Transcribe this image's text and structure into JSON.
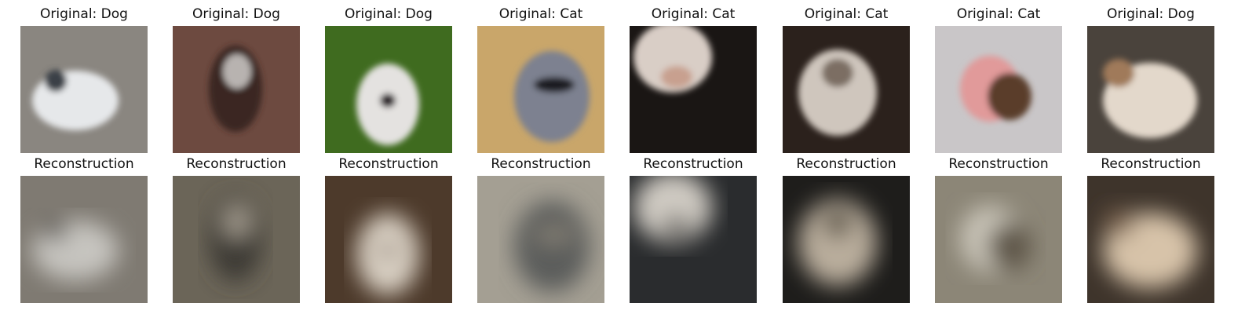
{
  "figure": {
    "columns": [
      {
        "original_title": "Original: Dog",
        "reconstruction_title": "Reconstruction",
        "original_image": "photo-white-dog-lying",
        "reconstruction_image": "blurry-reconstruction",
        "original_colors": {
          "bg": "#8a8680",
          "subject": "#e6e8ea",
          "accent": "#3b3f46"
        },
        "reconstruction_colors": {
          "bg": "#7f7a72",
          "subject": "#c6c4bf",
          "accent": "#5d5a56"
        }
      },
      {
        "original_title": "Original: Dog",
        "reconstruction_title": "Reconstruction",
        "original_image": "photo-dark-dog-sitting",
        "reconstruction_image": "blurry-reconstruction",
        "original_colors": {
          "bg": "#6d4a40",
          "subject": "#3a2522",
          "accent": "#b8b3b0"
        },
        "reconstruction_colors": {
          "bg": "#6b6558",
          "subject": "#3e3b36",
          "accent": "#9f978a"
        }
      },
      {
        "original_title": "Original: Dog",
        "reconstruction_title": "Reconstruction",
        "original_image": "photo-white-dog-grass",
        "reconstruction_image": "blurry-reconstruction",
        "original_colors": {
          "bg": "#3f6b1f",
          "subject": "#e4e2e0",
          "accent": "#2a2426"
        },
        "reconstruction_colors": {
          "bg": "#4d3a2b",
          "subject": "#d8cfc2",
          "accent": "#6e5a48"
        }
      },
      {
        "original_title": "Original: Cat",
        "reconstruction_title": "Reconstruction",
        "original_image": "photo-gray-cat-sunglasses",
        "reconstruction_image": "blurry-reconstruction",
        "original_colors": {
          "bg": "#c9a66a",
          "subject": "#7d8190",
          "accent": "#1c1c20"
        },
        "reconstruction_colors": {
          "bg": "#a49f93",
          "subject": "#5c5d5c",
          "accent": "#8a8478"
        }
      },
      {
        "original_title": "Original: Cat",
        "reconstruction_title": "Reconstruction",
        "original_image": "photo-cat-nose-closeup",
        "reconstruction_image": "blurry-reconstruction",
        "original_colors": {
          "bg": "#1a1614",
          "subject": "#d9cec6",
          "accent": "#c8a08f"
        },
        "reconstruction_colors": {
          "bg": "#2a2c2e",
          "subject": "#cfcac2",
          "accent": "#6d6a66"
        }
      },
      {
        "original_title": "Original: Cat",
        "reconstruction_title": "Reconstruction",
        "original_image": "photo-light-cat-dark-bg",
        "reconstruction_image": "blurry-reconstruction",
        "original_colors": {
          "bg": "#2b211c",
          "subject": "#cfc6bd",
          "accent": "#7b6e63"
        },
        "reconstruction_colors": {
          "bg": "#1e1d1b",
          "subject": "#b9ad9c",
          "accent": "#5c5447"
        }
      },
      {
        "original_title": "Original: Cat",
        "reconstruction_title": "Reconstruction",
        "original_image": "photo-kitten-in-hands",
        "reconstruction_image": "blurry-reconstruction",
        "original_colors": {
          "bg": "#c9c6c8",
          "subject": "#e19a9a",
          "accent": "#5a3c2c"
        },
        "reconstruction_colors": {
          "bg": "#8c8677",
          "subject": "#c9c4b8",
          "accent": "#5e574a"
        }
      },
      {
        "original_title": "Original: Dog",
        "reconstruction_title": "Reconstruction",
        "original_image": "photo-shihtzu-with-bow",
        "reconstruction_image": "blurry-reconstruction",
        "original_colors": {
          "bg": "#4a433c",
          "subject": "#e3d8cb",
          "accent": "#a07a5a"
        },
        "reconstruction_colors": {
          "bg": "#3e342b",
          "subject": "#d7c3a9",
          "accent": "#7a6450"
        }
      }
    ]
  }
}
